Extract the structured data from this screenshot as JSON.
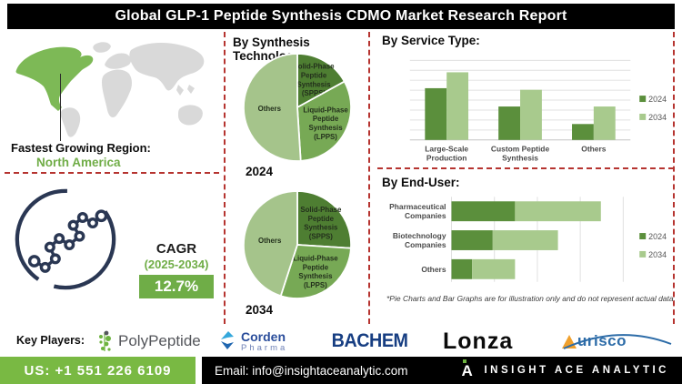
{
  "title": "Global GLP-1 Peptide Synthesis CDMO Market  Research Report",
  "region": {
    "label": "Fastest Growing Region:",
    "value": "North America"
  },
  "cagr": {
    "label": "CAGR",
    "period": "(2025-2034)",
    "value": "12.7%"
  },
  "synthesis": {
    "heading": "By Synthesis Technology:"
  },
  "footnote": "*Pie Charts and Bar Graphs are for illustration only and do not represent actual data.",
  "key_players": {
    "label": "Key Players:",
    "items": [
      {
        "name": "PolyPeptide"
      },
      {
        "name": "Corden Pharma",
        "lines": [
          "Corden",
          "Pharma"
        ]
      },
      {
        "name": "BACHEM"
      },
      {
        "name": "Lonza"
      },
      {
        "name": "Aurisco",
        "display": "urisco"
      }
    ]
  },
  "contact": {
    "phone": "US: +1 551 226 6109",
    "email": "Email: info@insightaceanalytic.com",
    "brand": "INSIGHT ACE ANALYTIC"
  },
  "colors": {
    "accent_green": "#70ad47",
    "dashed_red": "#b63430",
    "molecule_navy": "#2a3753",
    "map_region_green": "#7db956",
    "map_gray": "#d9d9d9"
  },
  "chart_data": [
    {
      "type": "pie",
      "title": "2024",
      "labels": [
        "Solid-Phase Peptide Synthesis (SPPS)",
        "Liquid-Phase Peptide Synthesis (LPPS)",
        "Others"
      ],
      "values": [
        17,
        32,
        51
      ],
      "colors": [
        "#4e7e32",
        "#77a955",
        "#a5c48b"
      ]
    },
    {
      "type": "pie",
      "title": "2034",
      "labels": [
        "Solid-Phase Peptide Synthesis (SPPS)",
        "Liquid-Phase Peptide Synthesis (LPPS)",
        "Others"
      ],
      "values": [
        26,
        29,
        45
      ],
      "colors": [
        "#4e7e32",
        "#77a955",
        "#a5c48b"
      ]
    },
    {
      "type": "bar",
      "title": "By Service Type:",
      "categories": [
        "Large-Scale Production",
        "Custom Peptide Synthesis",
        "Others"
      ],
      "series": [
        {
          "name": "2024",
          "values": [
            6.5,
            4.2,
            2.0
          ]
        },
        {
          "name": "2034",
          "values": [
            8.5,
            6.3,
            4.2
          ]
        }
      ],
      "colors": [
        "#5b8f3c",
        "#a8ca8d"
      ],
      "ylim": [
        0,
        10
      ],
      "grid": true,
      "legend_position": "right"
    },
    {
      "type": "bar",
      "orientation": "horizontal",
      "stacked": true,
      "title": "By End-User:",
      "categories": [
        "Pharmaceutical Companies",
        "Biotechnology Companies",
        "Others"
      ],
      "series": [
        {
          "name": "2024",
          "values": [
            3.7,
            2.4,
            1.2
          ]
        },
        {
          "name": "2034",
          "values": [
            5.0,
            3.8,
            2.5
          ]
        }
      ],
      "colors": [
        "#5b8f3c",
        "#a8ca8d"
      ],
      "xlim": [
        0,
        10
      ],
      "grid": true,
      "legend_position": "right"
    }
  ]
}
